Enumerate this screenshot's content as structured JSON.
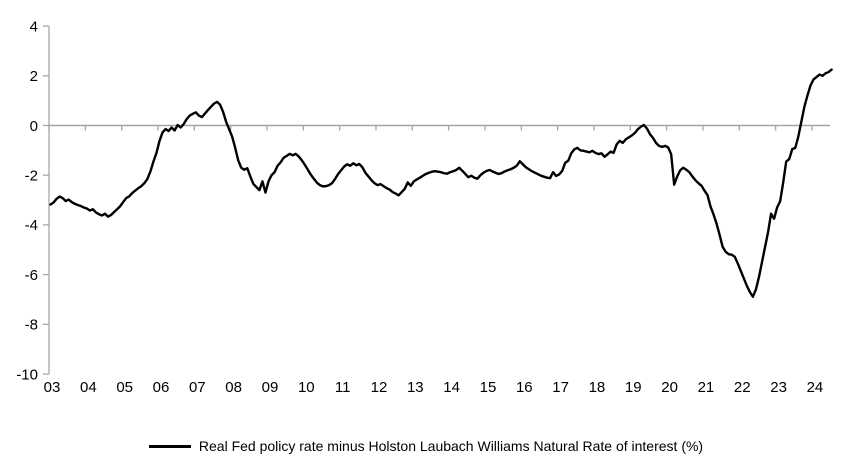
{
  "chart_data": {
    "type": "line",
    "title": "",
    "xlabel": "",
    "ylabel": "",
    "ylim": [
      -10,
      4
    ],
    "y_ticks": [
      4,
      2,
      0,
      -2,
      -4,
      -6,
      -8,
      -10
    ],
    "y_tick_labels": [
      "4",
      "2",
      "0",
      "-2",
      "-4",
      "-6",
      "-8",
      "-10"
    ],
    "x_tick_labels": [
      "03",
      "04",
      "05",
      "06",
      "07",
      "08",
      "09",
      "10",
      "11",
      "12",
      "13",
      "14",
      "15",
      "16",
      "17",
      "18",
      "19",
      "20",
      "21",
      "22",
      "23",
      "24"
    ],
    "x_range_years": [
      2003,
      2024.6
    ],
    "grid": "zero-line-only",
    "legend_position": "bottom-center",
    "series": [
      {
        "name": "Real Fed policy rate minus Holston Laubach Williams Natural Rate of interest (%)",
        "color": "#000000",
        "frequency": "monthly",
        "start": "2003-01",
        "end": "2024-07",
        "values": [
          -3.18,
          -3.1,
          -2.95,
          -2.86,
          -2.92,
          -3.04,
          -2.98,
          -3.08,
          -3.15,
          -3.2,
          -3.24,
          -3.3,
          -3.34,
          -3.42,
          -3.37,
          -3.5,
          -3.57,
          -3.62,
          -3.55,
          -3.67,
          -3.6,
          -3.48,
          -3.37,
          -3.25,
          -3.08,
          -2.92,
          -2.85,
          -2.72,
          -2.62,
          -2.52,
          -2.44,
          -2.32,
          -2.15,
          -1.85,
          -1.45,
          -1.1,
          -0.62,
          -0.28,
          -0.14,
          -0.22,
          -0.08,
          -0.2,
          0.02,
          -0.08,
          0.06,
          0.26,
          0.4,
          0.47,
          0.53,
          0.4,
          0.34,
          0.48,
          0.62,
          0.75,
          0.88,
          0.95,
          0.84,
          0.55,
          0.15,
          -0.15,
          -0.45,
          -0.9,
          -1.4,
          -1.7,
          -1.78,
          -1.72,
          -2.05,
          -2.35,
          -2.48,
          -2.6,
          -2.25,
          -2.7,
          -2.25,
          -2.0,
          -1.88,
          -1.62,
          -1.48,
          -1.3,
          -1.22,
          -1.14,
          -1.2,
          -1.14,
          -1.25,
          -1.4,
          -1.58,
          -1.78,
          -1.98,
          -2.15,
          -2.3,
          -2.4,
          -2.45,
          -2.44,
          -2.4,
          -2.32,
          -2.15,
          -1.95,
          -1.8,
          -1.65,
          -1.56,
          -1.62,
          -1.52,
          -1.6,
          -1.55,
          -1.68,
          -1.9,
          -2.05,
          -2.2,
          -2.32,
          -2.4,
          -2.36,
          -2.44,
          -2.52,
          -2.58,
          -2.68,
          -2.74,
          -2.81,
          -2.68,
          -2.55,
          -2.29,
          -2.43,
          -2.25,
          -2.17,
          -2.1,
          -2.02,
          -1.95,
          -1.9,
          -1.86,
          -1.84,
          -1.86,
          -1.88,
          -1.92,
          -1.94,
          -1.88,
          -1.84,
          -1.79,
          -1.7,
          -1.82,
          -1.95,
          -2.08,
          -2.02,
          -2.1,
          -2.14,
          -2.0,
          -1.9,
          -1.83,
          -1.79,
          -1.85,
          -1.9,
          -1.95,
          -1.92,
          -1.85,
          -1.8,
          -1.76,
          -1.7,
          -1.62,
          -1.44,
          -1.56,
          -1.68,
          -1.76,
          -1.84,
          -1.9,
          -1.96,
          -2.02,
          -2.06,
          -2.1,
          -2.12,
          -1.88,
          -2.03,
          -1.97,
          -1.83,
          -1.5,
          -1.42,
          -1.12,
          -0.96,
          -0.9,
          -1.0,
          -1.02,
          -1.05,
          -1.08,
          -1.02,
          -1.1,
          -1.15,
          -1.12,
          -1.26,
          -1.16,
          -1.05,
          -1.1,
          -0.76,
          -0.62,
          -0.7,
          -0.56,
          -0.48,
          -0.4,
          -0.3,
          -0.15,
          -0.05,
          0.02,
          -0.12,
          -0.35,
          -0.5,
          -0.7,
          -0.82,
          -0.86,
          -0.82,
          -0.88,
          -1.15,
          -2.38,
          -2.05,
          -1.8,
          -1.7,
          -1.78,
          -1.88,
          -2.05,
          -2.2,
          -2.32,
          -2.42,
          -2.62,
          -2.8,
          -3.26,
          -3.58,
          -3.95,
          -4.4,
          -4.88,
          -5.08,
          -5.18,
          -5.2,
          -5.28,
          -5.55,
          -5.85,
          -6.15,
          -6.45,
          -6.7,
          -6.89,
          -6.6,
          -6.1,
          -5.5,
          -4.9,
          -4.3,
          -3.55,
          -3.75,
          -3.3,
          -3.05,
          -2.3,
          -1.45,
          -1.35,
          -0.95,
          -0.9,
          -0.45,
          0.15,
          0.75,
          1.2,
          1.6,
          1.85,
          1.95,
          2.05,
          2.0,
          2.1,
          2.15,
          2.25
        ]
      }
    ]
  },
  "legend": {
    "label": "Real Fed policy rate minus Holston Laubach Williams Natural Rate of interest (%)"
  },
  "colors": {
    "axis": "#a6a6a6",
    "line": "#000000",
    "text": "#000000",
    "background": "#ffffff"
  }
}
